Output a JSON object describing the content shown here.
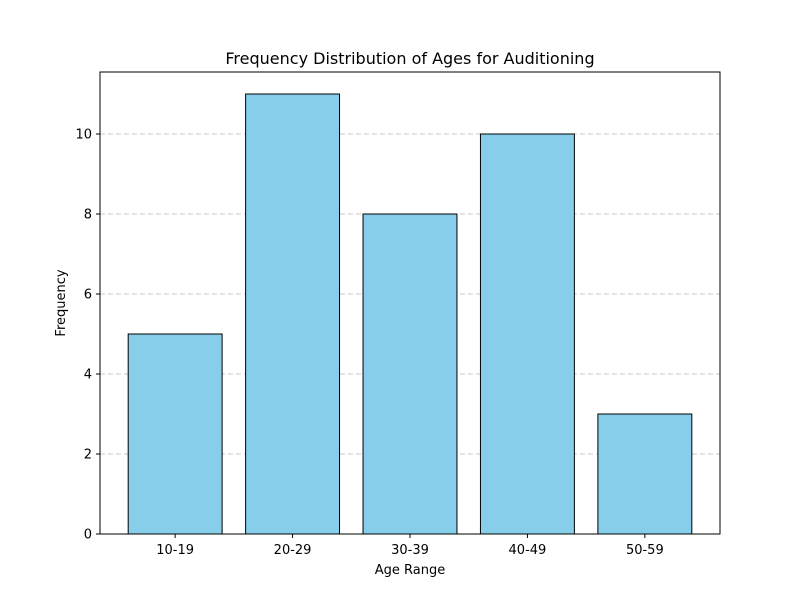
{
  "chart_data": {
    "type": "bar",
    "title": "Frequency Distribution of Ages for Auditioning",
    "xlabel": "Age Range",
    "ylabel": "Frequency",
    "categories": [
      "10-19",
      "20-29",
      "30-39",
      "40-49",
      "50-59"
    ],
    "values": [
      5,
      11,
      8,
      10,
      3
    ],
    "ylim": [
      0,
      11.55
    ],
    "yticks": [
      0,
      2,
      4,
      6,
      8,
      10
    ],
    "grid": {
      "axis": "y",
      "style": "dashed"
    },
    "legend": "none",
    "colors": {
      "bar_fill": "#87ceeb",
      "bar_edge": "#000000",
      "grid": "#c8c8c8"
    }
  }
}
